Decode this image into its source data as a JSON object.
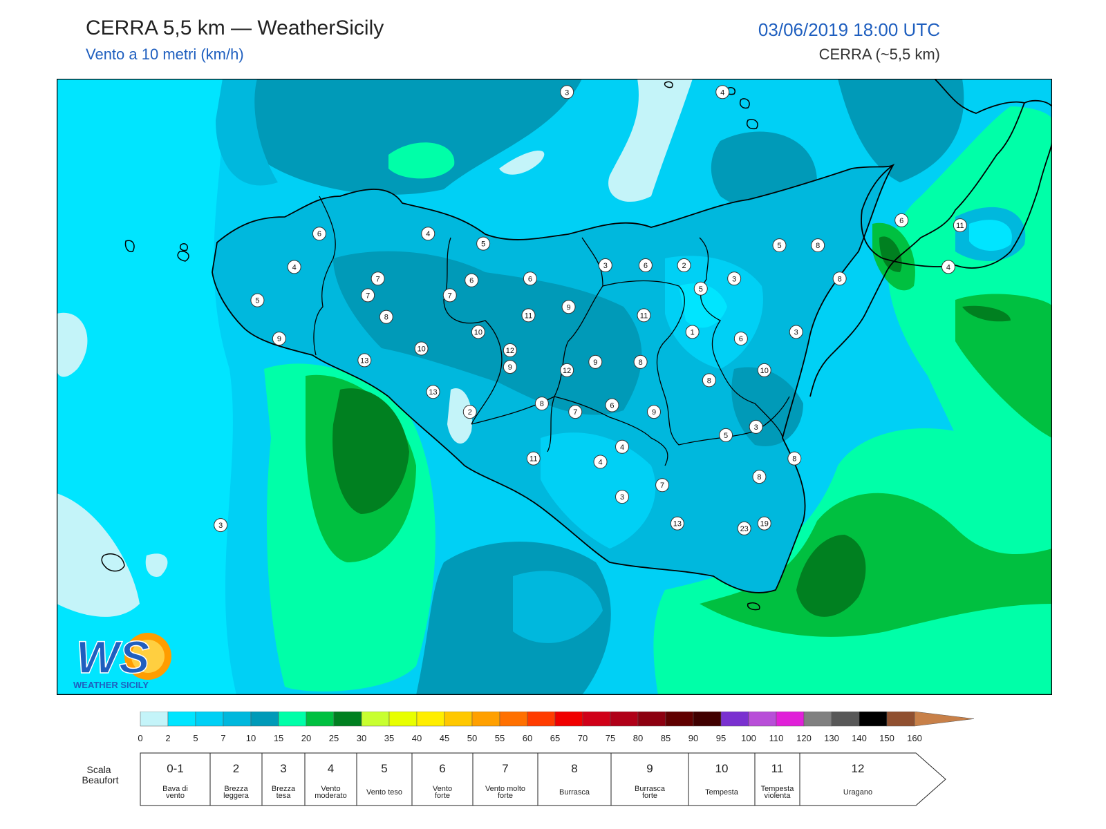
{
  "header": {
    "title": "CERRA 5,5 km — WeatherSicily",
    "subtitle": "Vento a 10 metri (km/h)",
    "datetime": "03/06/2019 18:00 UTC",
    "model": "CERRA (~5,5 km)"
  },
  "logo": {
    "mark": "WS",
    "text": "WEATHER SICILY"
  },
  "stations": [
    {
      "value": "3",
      "lon": 14.05,
      "lat": 39.02
    },
    {
      "value": "4",
      "lon": 14.98,
      "lat": 39.02
    },
    {
      "value": "6",
      "lon": 12.57,
      "lat": 38.17
    },
    {
      "value": "4",
      "lon": 13.22,
      "lat": 38.17
    },
    {
      "value": "5",
      "lon": 13.55,
      "lat": 38.11
    },
    {
      "value": "4",
      "lon": 12.42,
      "lat": 37.97
    },
    {
      "value": "7",
      "lon": 12.92,
      "lat": 37.9
    },
    {
      "value": "6",
      "lon": 13.48,
      "lat": 37.89
    },
    {
      "value": "6",
      "lon": 13.83,
      "lat": 37.9
    },
    {
      "value": "3",
      "lon": 14.28,
      "lat": 37.98
    },
    {
      "value": "6",
      "lon": 14.52,
      "lat": 37.98
    },
    {
      "value": "2",
      "lon": 14.75,
      "lat": 37.98
    },
    {
      "value": "3",
      "lon": 15.05,
      "lat": 37.9
    },
    {
      "value": "5",
      "lon": 15.32,
      "lat": 38.1
    },
    {
      "value": "8",
      "lon": 15.55,
      "lat": 38.1
    },
    {
      "value": "6",
      "lon": 16.05,
      "lat": 38.25
    },
    {
      "value": "11",
      "lon": 16.4,
      "lat": 38.22
    },
    {
      "value": "4",
      "lon": 16.33,
      "lat": 37.97
    },
    {
      "value": "8",
      "lon": 15.68,
      "lat": 37.9
    },
    {
      "value": "5",
      "lon": 14.85,
      "lat": 37.84
    },
    {
      "value": "7",
      "lon": 12.86,
      "lat": 37.8
    },
    {
      "value": "7",
      "lon": 13.35,
      "lat": 37.8
    },
    {
      "value": "5",
      "lon": 12.2,
      "lat": 37.77
    },
    {
      "value": "8",
      "lon": 12.97,
      "lat": 37.67
    },
    {
      "value": "9",
      "lon": 14.06,
      "lat": 37.73
    },
    {
      "value": "11",
      "lon": 13.82,
      "lat": 37.68
    },
    {
      "value": "11",
      "lon": 14.51,
      "lat": 37.68
    },
    {
      "value": "10",
      "lon": 13.52,
      "lat": 37.58
    },
    {
      "value": "1",
      "lon": 14.8,
      "lat": 37.58
    },
    {
      "value": "6",
      "lon": 15.09,
      "lat": 37.54
    },
    {
      "value": "3",
      "lon": 15.42,
      "lat": 37.58
    },
    {
      "value": "9",
      "lon": 12.33,
      "lat": 37.54
    },
    {
      "value": "10",
      "lon": 13.18,
      "lat": 37.48
    },
    {
      "value": "12",
      "lon": 13.71,
      "lat": 37.47
    },
    {
      "value": "13",
      "lon": 12.84,
      "lat": 37.41
    },
    {
      "value": "9",
      "lon": 13.71,
      "lat": 37.37
    },
    {
      "value": "9",
      "lon": 14.22,
      "lat": 37.4
    },
    {
      "value": "8",
      "lon": 14.49,
      "lat": 37.4
    },
    {
      "value": "12",
      "lon": 14.05,
      "lat": 37.35
    },
    {
      "value": "10",
      "lon": 15.23,
      "lat": 37.35
    },
    {
      "value": "8",
      "lon": 14.9,
      "lat": 37.29
    },
    {
      "value": "13",
      "lon": 13.25,
      "lat": 37.22
    },
    {
      "value": "8",
      "lon": 13.9,
      "lat": 37.15
    },
    {
      "value": "7",
      "lon": 14.1,
      "lat": 37.1
    },
    {
      "value": "6",
      "lon": 14.32,
      "lat": 37.14
    },
    {
      "value": "9",
      "lon": 14.57,
      "lat": 37.1
    },
    {
      "value": "2",
      "lon": 13.47,
      "lat": 37.1
    },
    {
      "value": "3",
      "lon": 15.18,
      "lat": 37.01
    },
    {
      "value": "5",
      "lon": 15.0,
      "lat": 36.96
    },
    {
      "value": "4",
      "lon": 14.38,
      "lat": 36.89
    },
    {
      "value": "11",
      "lon": 13.85,
      "lat": 36.82
    },
    {
      "value": "4",
      "lon": 14.25,
      "lat": 36.8
    },
    {
      "value": "8",
      "lon": 15.41,
      "lat": 36.82
    },
    {
      "value": "8",
      "lon": 15.2,
      "lat": 36.71
    },
    {
      "value": "7",
      "lon": 14.62,
      "lat": 36.66
    },
    {
      "value": "3",
      "lon": 14.38,
      "lat": 36.59
    },
    {
      "value": "3",
      "lon": 11.98,
      "lat": 36.42
    },
    {
      "value": "13",
      "lon": 14.71,
      "lat": 36.43
    },
    {
      "value": "19",
      "lon": 15.23,
      "lat": 36.43
    },
    {
      "value": "23",
      "lon": 15.11,
      "lat": 36.4
    }
  ],
  "colorbar": {
    "ticks": [
      "0",
      "2",
      "5",
      "7",
      "10",
      "15",
      "20",
      "25",
      "30",
      "35",
      "40",
      "45",
      "50",
      "55",
      "60",
      "65",
      "70",
      "75",
      "80",
      "85",
      "90",
      "95",
      "100",
      "110",
      "120",
      "130",
      "140",
      "150",
      "160"
    ],
    "colors": [
      "#c4f4f9",
      "#00e5ff",
      "#00d0f5",
      "#00b8dd",
      "#009ab8",
      "#00ffa8",
      "#00c040",
      "#008020",
      "#c8ff30",
      "#e8ff00",
      "#ffee00",
      "#ffc800",
      "#ffa000",
      "#ff7000",
      "#ff3c00",
      "#f00000",
      "#d00018",
      "#b00018",
      "#8c0010",
      "#600000",
      "#400000",
      "#7a30d0",
      "#b84ed8",
      "#e020d8",
      "#808080",
      "#585858",
      "#000000",
      "#905030",
      "#c88048"
    ],
    "arrow_color": "#c88048"
  },
  "beaufort": {
    "label": "Scala Beaufort",
    "classes": [
      {
        "num": "0-1",
        "desc": [
          "Bava di",
          "vento"
        ]
      },
      {
        "num": "2",
        "desc": [
          "Brezza",
          "leggera"
        ]
      },
      {
        "num": "3",
        "desc": [
          "Brezza",
          "tesa"
        ]
      },
      {
        "num": "4",
        "desc": [
          "Vento",
          "moderato"
        ]
      },
      {
        "num": "5",
        "desc": [
          "Vento teso"
        ]
      },
      {
        "num": "6",
        "desc": [
          "Vento",
          "forte"
        ]
      },
      {
        "num": "7",
        "desc": [
          "Vento molto",
          "forte"
        ]
      },
      {
        "num": "8",
        "desc": [
          "Burrasca"
        ]
      },
      {
        "num": "9",
        "desc": [
          "Burrasca",
          "forte"
        ]
      },
      {
        "num": "10",
        "desc": [
          "Tempesta"
        ]
      },
      {
        "num": "11",
        "desc": [
          "Tempesta",
          "violenta"
        ]
      },
      {
        "num": "12",
        "desc": [
          "Uragano"
        ]
      }
    ]
  },
  "palette": {
    "c0": "#c4f4f9",
    "c2": "#00e5ff",
    "c5": "#00d0f5",
    "c7": "#00b8dd",
    "c10": "#009ab8",
    "c15": "#00ffa8",
    "c20": "#00c040",
    "c25": "#008020",
    "coast": "#000000"
  }
}
